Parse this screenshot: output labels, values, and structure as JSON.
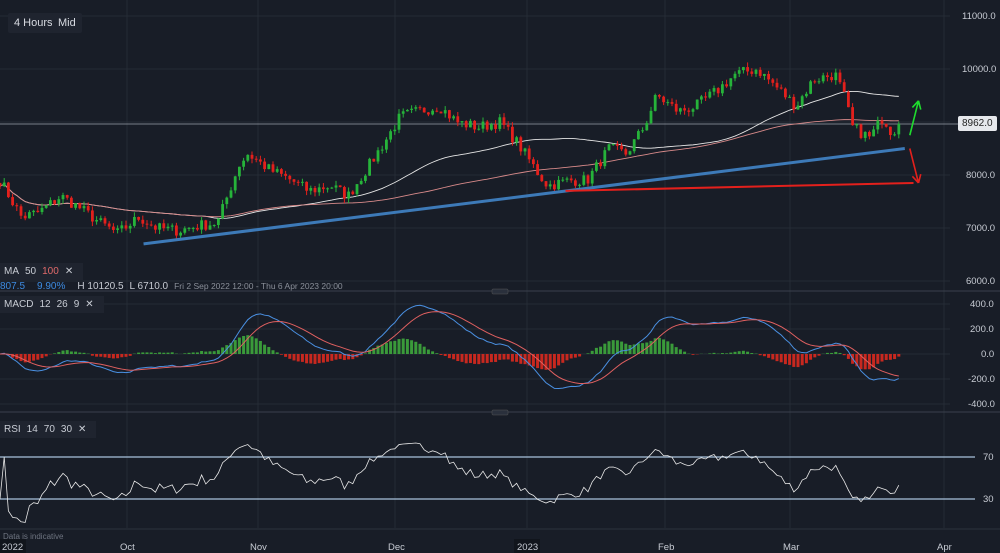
{
  "toolbar": {
    "interval": "4 Hours",
    "price_type": "Mid"
  },
  "indicators": {
    "ma": {
      "label": "MA",
      "p1": "50",
      "p2": "100",
      "close": "✕"
    },
    "stats": {
      "change": "807.5",
      "change_pct": "9.90%",
      "high": "H 10120.5",
      "low": "L 6710.0",
      "range": "Fri 2 Sep 2022 12:00 - Thu 6 Apr 2023 20:00"
    },
    "macd": {
      "label": "MACD",
      "p1": "12",
      "p2": "26",
      "p3": "9",
      "close": "✕"
    },
    "rsi": {
      "label": "RSI",
      "p1": "14",
      "p2": "70",
      "p3": "30",
      "close": "✕"
    }
  },
  "footer_note": "Data is indicative",
  "colors": {
    "background": "#181d27",
    "up": "#26b33a",
    "down": "#e3201c",
    "support_line": "#3d7ab8",
    "target_line": "#e3201c",
    "arrow_up": "#1fdc2e",
    "arrow_down": "#e3201c",
    "ma50": "#e6e6e6",
    "ma100": "#d88a8a",
    "macd_line": "#4a90e2",
    "signal_line": "#e06060"
  },
  "chart_data": [
    {
      "type": "candlestick",
      "panel": "price",
      "last_price": "8962.0",
      "y_ticks": [
        "11000.0",
        "10000.0",
        "8000.0",
        "7000.0",
        "6000.0"
      ],
      "ylim": [
        6000,
        11000
      ],
      "x_ticks": [
        "2022",
        "Oct",
        "Nov",
        "Dec",
        "2023",
        "Feb",
        "Mar",
        "Apr"
      ],
      "xlim": [
        "2022-09-02",
        "2023-04-06"
      ],
      "grid": true,
      "series_close": [
        [
          "2022-09-02",
          7900
        ],
        [
          "2022-09-07",
          7200
        ],
        [
          "2022-09-11",
          7300
        ],
        [
          "2022-09-16",
          7600
        ],
        [
          "2022-09-20",
          7400
        ],
        [
          "2022-09-25",
          7100
        ],
        [
          "2022-09-29",
          6900
        ],
        [
          "2022-10-04",
          7200
        ],
        [
          "2022-10-08",
          7000
        ],
        [
          "2022-10-13",
          6950
        ],
        [
          "2022-10-18",
          7050
        ],
        [
          "2022-10-22",
          7100
        ],
        [
          "2022-10-27",
          8200
        ],
        [
          "2022-10-29",
          8400
        ],
        [
          "2022-11-03",
          8100
        ],
        [
          "2022-11-08",
          7900
        ],
        [
          "2022-11-12",
          7700
        ],
        [
          "2022-11-17",
          7800
        ],
        [
          "2022-11-21",
          7600
        ],
        [
          "2022-11-26",
          8200
        ],
        [
          "2022-11-30",
          8700
        ],
        [
          "2022-12-03",
          9100
        ],
        [
          "2022-12-07",
          9200
        ],
        [
          "2022-12-12",
          9300
        ],
        [
          "2022-12-16",
          9000
        ],
        [
          "2022-12-21",
          8900
        ],
        [
          "2022-12-26",
          9000
        ],
        [
          "2022-12-30",
          8600
        ],
        [
          "2023-01-04",
          8000
        ],
        [
          "2023-01-06",
          7800
        ],
        [
          "2023-01-11",
          7900
        ],
        [
          "2023-01-15",
          7900
        ],
        [
          "2023-01-20",
          8500
        ],
        [
          "2023-01-24",
          8400
        ],
        [
          "2023-01-28",
          8900
        ],
        [
          "2023-01-31",
          9500
        ],
        [
          "2023-02-05",
          9200
        ],
        [
          "2023-02-09",
          9300
        ],
        [
          "2023-02-14",
          9600
        ],
        [
          "2023-02-18",
          9900
        ],
        [
          "2023-02-23",
          10000
        ],
        [
          "2023-02-27",
          9700
        ],
        [
          "2023-03-04",
          9300
        ],
        [
          "2023-03-08",
          9800
        ],
        [
          "2023-03-13",
          9900
        ],
        [
          "2023-03-15",
          9500
        ],
        [
          "2023-03-17",
          8900
        ],
        [
          "2023-03-21",
          8700
        ],
        [
          "2023-03-24",
          9100
        ],
        [
          "2023-03-26",
          8800
        ],
        [
          "2023-03-28",
          8962
        ]
      ],
      "moving_averages": [
        50,
        100
      ],
      "trendlines": [
        {
          "name": "support",
          "from": [
            "2022-10-05",
            6700
          ],
          "to": [
            "2023-03-29",
            8500
          ]
        },
        {
          "name": "target",
          "from": [
            "2023-01-10",
            7700
          ],
          "to": [
            "2023-03-31",
            7850
          ]
        }
      ],
      "arrows": [
        {
          "direction": "up",
          "from": [
            "2023-03-29",
            8750
          ],
          "to": [
            "2023-03-31",
            9400
          ]
        },
        {
          "direction": "down",
          "from": [
            "2023-03-29",
            8500
          ],
          "to": [
            "2023-03-31",
            7850
          ]
        }
      ]
    },
    {
      "type": "line+histogram",
      "panel": "macd",
      "y_ticks": [
        "400.0",
        "200.0",
        "0.0",
        "-200.0",
        "-400.0"
      ],
      "ylim": [
        -460,
        460
      ],
      "params": [
        12,
        26,
        9
      ]
    },
    {
      "type": "line",
      "panel": "rsi",
      "y_ticks": [
        "70",
        "30"
      ],
      "ylim": [
        10,
        90
      ],
      "levels": [
        70,
        30
      ],
      "period": 14
    }
  ]
}
